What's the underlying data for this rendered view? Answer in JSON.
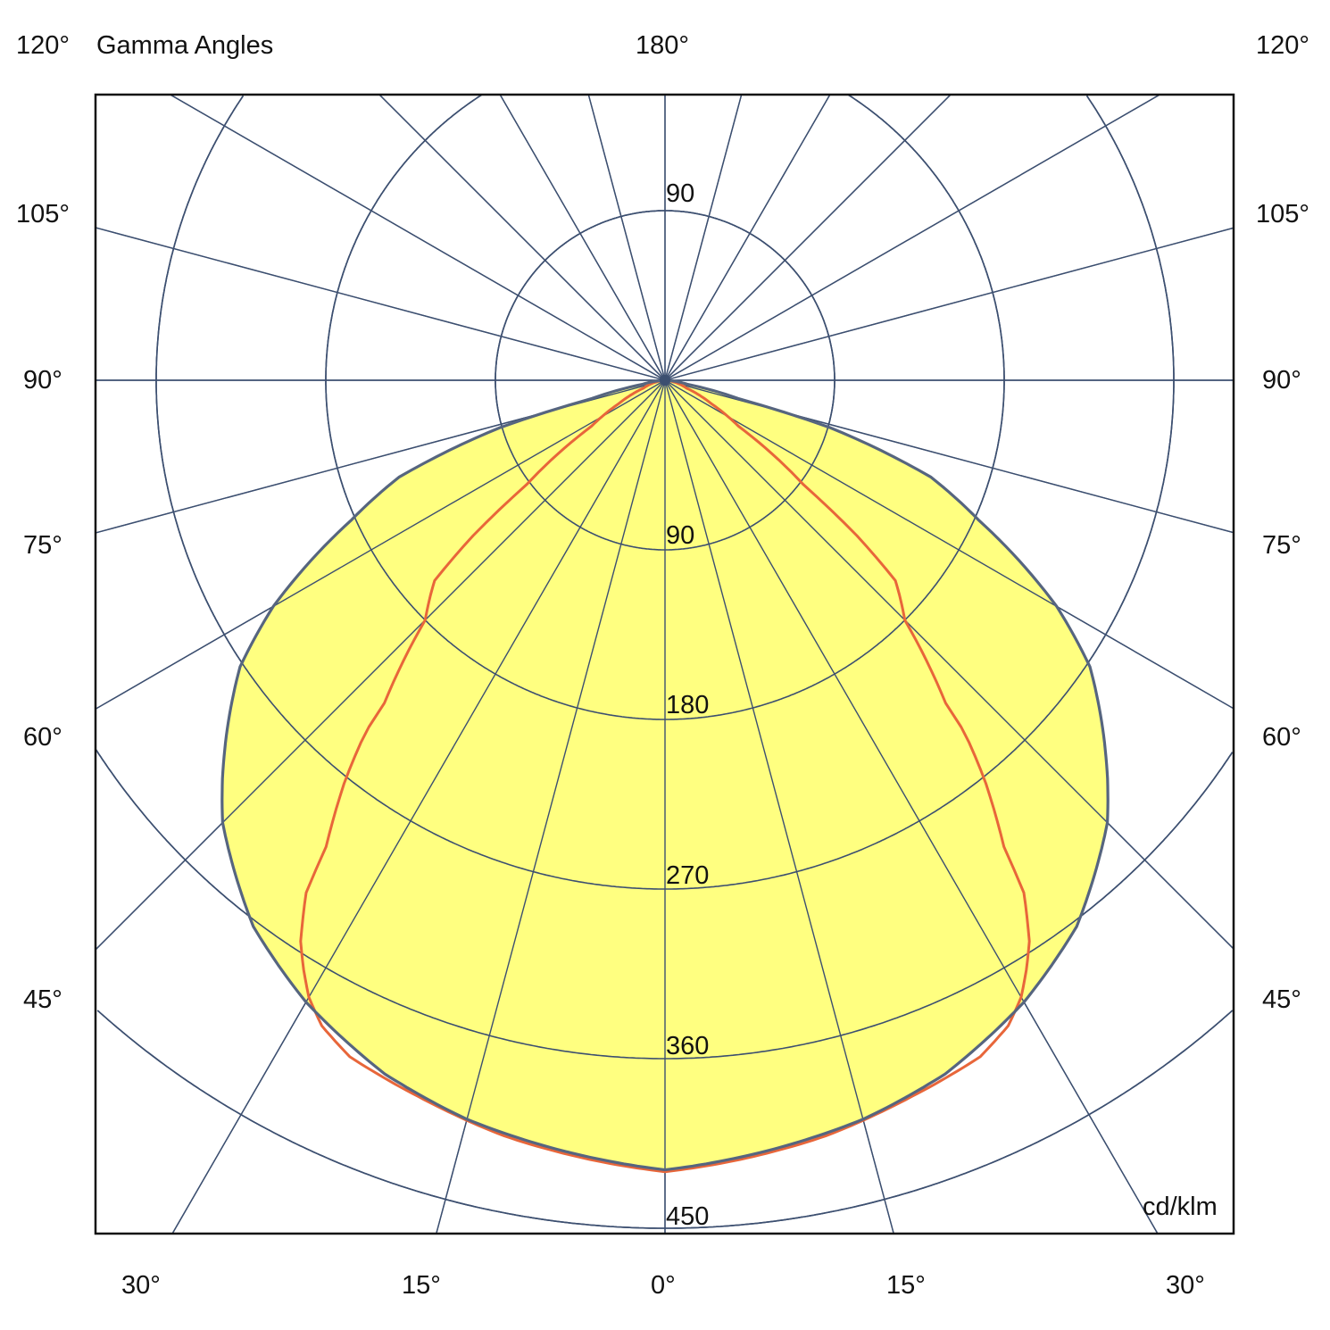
{
  "chart_data": {
    "type": "polar",
    "title": "Gamma Angles",
    "unit": "cd/klm",
    "radial_ticks": [
      90,
      180,
      270,
      360,
      450
    ],
    "radial_range": [
      0,
      450
    ],
    "angle_step_deg": 15,
    "top_labels": {
      "left": "120°",
      "center": "180°",
      "right": "120°"
    },
    "side_labels": [
      "105°",
      "90°",
      "75°",
      "60°",
      "45°"
    ],
    "bottom_labels": [
      "30°",
      "15°",
      "0°",
      "15°",
      "30°"
    ],
    "upper_tick_label": "90",
    "lower_tick_labels": [
      "90",
      "180",
      "270",
      "360",
      "450"
    ],
    "grid": true,
    "colors": {
      "grid": "#3c4f70",
      "fill": "#ffff80",
      "outline": "#56657f",
      "curve2": "#e8663a",
      "frame": "#111111"
    },
    "series": [
      {
        "style": "filled",
        "gamma": [
          0,
          15,
          22,
          30,
          37,
          45,
          48,
          56,
          60,
          66,
          70,
          74,
          76,
          80,
          85,
          90
        ],
        "intensity": [
          419,
          406,
          397,
          381,
          363,
          332,
          316,
          272,
          240,
          182,
          150,
          91,
          40,
          12,
          4,
          0
        ]
      },
      {
        "style": "line",
        "gamma": [
          0,
          12,
          19,
          25,
          28,
          30,
          31.5,
          33,
          35,
          36,
          38.7,
          40.4,
          41,
          45,
          49,
          51,
          53,
          58,
          63,
          70,
          80,
          90
        ],
        "intensity": [
          420,
          410,
          402,
          396,
          388,
          378,
          367,
          355,
          332,
          306,
          271,
          245,
          227,
          180,
          162,
          131,
          92,
          46,
          28,
          12,
          4,
          0
        ]
      }
    ]
  }
}
